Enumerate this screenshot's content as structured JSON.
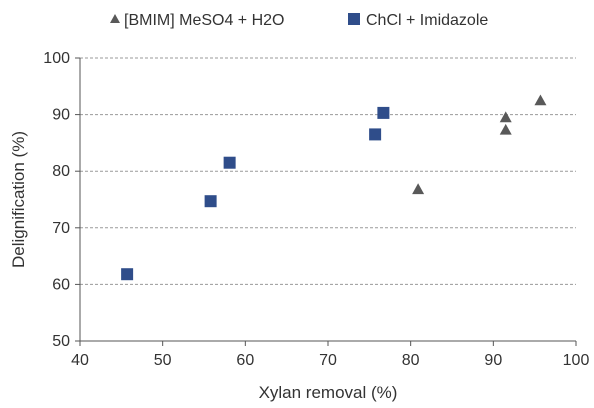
{
  "chart_data": {
    "type": "scatter",
    "xlabel": "Xylan removal (%)",
    "ylabel": "Delignification (%)",
    "xlim": [
      40,
      100
    ],
    "ylim": [
      50,
      100
    ],
    "xticks": [
      "40",
      "50",
      "60",
      "70",
      "80",
      "90",
      "100"
    ],
    "yticks": [
      "50",
      "60",
      "70",
      "80",
      "90",
      "100"
    ],
    "grid": "horizontal dashed",
    "legend": "top",
    "series": [
      {
        "name": "[BMIM] MeSO4 + H2O",
        "marker": "triangle",
        "color": "#595959",
        "points": [
          {
            "x": 80.9,
            "y": 76.8
          },
          {
            "x": 91.5,
            "y": 87.3
          },
          {
            "x": 91.5,
            "y": 89.5
          },
          {
            "x": 95.7,
            "y": 92.5
          }
        ]
      },
      {
        "name": "ChCl + Imidazole",
        "marker": "square",
        "color": "#2F4D8A",
        "points": [
          {
            "x": 45.7,
            "y": 61.8
          },
          {
            "x": 55.8,
            "y": 74.7
          },
          {
            "x": 58.1,
            "y": 81.5
          },
          {
            "x": 75.7,
            "y": 86.5
          },
          {
            "x": 76.7,
            "y": 90.3
          }
        ]
      }
    ]
  }
}
